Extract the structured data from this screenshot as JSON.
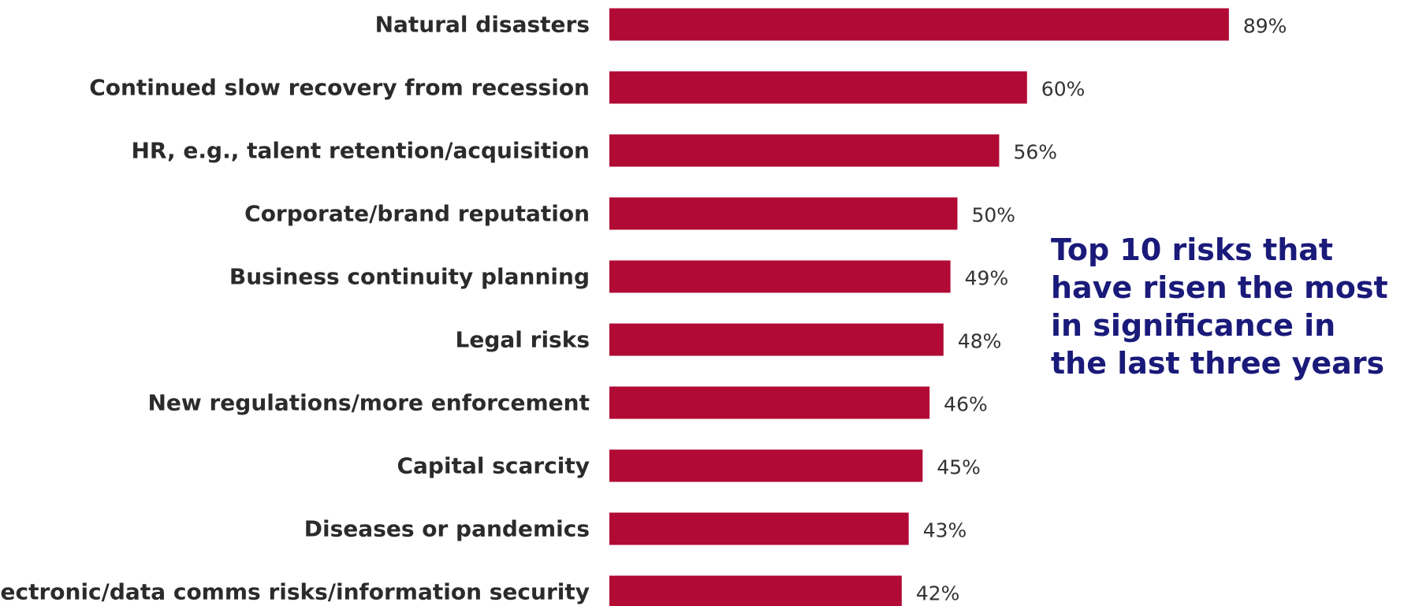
{
  "chart_data": {
    "type": "bar",
    "orientation": "horizontal",
    "title": "Top 10 risks that have risen the most in significance in the last three years",
    "categories": [
      "Natural disasters",
      "Continued slow recovery from recession",
      "HR, e.g., talent retention/acquisition",
      "Corporate/brand reputation",
      "Business continuity planning",
      "Legal risks",
      "New regulations/more enforcement",
      "Capital scarcity",
      "Diseases or pandemics",
      "Electronic/data comms risks/information security"
    ],
    "values": [
      89,
      60,
      56,
      50,
      49,
      48,
      46,
      45,
      43,
      42
    ],
    "value_labels": [
      "89%",
      "60%",
      "56%",
      "50%",
      "49%",
      "48%",
      "46%",
      "45%",
      "43%",
      "42%"
    ],
    "unit": "%",
    "xlabel": "",
    "ylabel": "",
    "xlim": [
      0,
      100
    ],
    "grid": false,
    "bar_color": "#b10a35"
  }
}
